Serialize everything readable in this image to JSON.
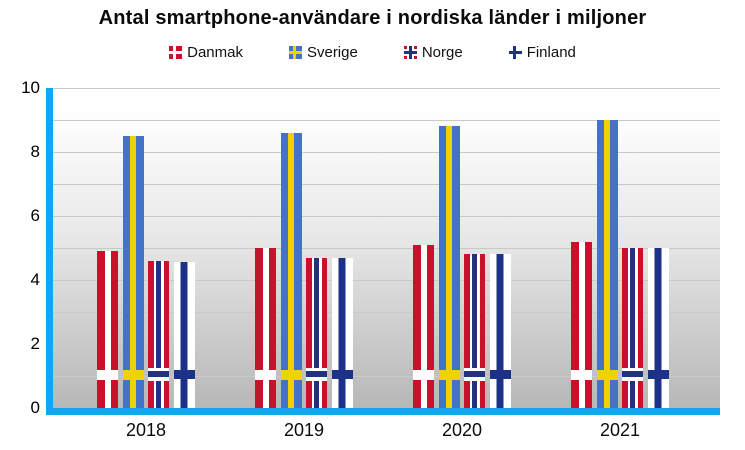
{
  "title": "Antal smartphone-användare i nordiska länder i miljoner",
  "colors": {
    "axis_blue": "#0FA7F0",
    "denmark_red": "#C9112B",
    "norway_red": "#C9112B",
    "sweden_blue": "#4472C4",
    "sweden_yellow": "#F0D202",
    "norway_navy": "#24317E",
    "finland_navy": "#1E3189",
    "gridline_gray": "#C9C9C9",
    "plot_gradient_top": "#FFFFFF",
    "plot_gradient_bottom": "#B7B7B7"
  },
  "chart_data": {
    "type": "bar",
    "title": "Antal smartphone-användare i nordiska länder i miljoner",
    "categories": [
      "2018",
      "2019",
      "2020",
      "2021"
    ],
    "series": [
      {
        "name": "Danmak",
        "flag": "denmark",
        "values": [
          4.9,
          5.0,
          5.1,
          5.2
        ]
      },
      {
        "name": "Sverige",
        "flag": "sweden",
        "values": [
          8.5,
          8.6,
          8.8,
          9.0
        ]
      },
      {
        "name": "Norge",
        "flag": "norway",
        "values": [
          4.6,
          4.7,
          4.8,
          5.0
        ]
      },
      {
        "name": "Finland",
        "flag": "finland",
        "values": [
          4.55,
          4.7,
          4.8,
          5.0
        ]
      }
    ],
    "xlabel": "",
    "ylabel": "",
    "ylim": [
      0,
      10
    ],
    "yticks": [
      0,
      2,
      4,
      6,
      8,
      10
    ],
    "grid": true,
    "legend_position": "top"
  }
}
